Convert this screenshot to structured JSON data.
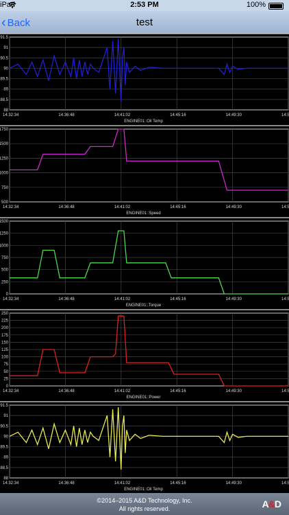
{
  "status_bar": {
    "device": "iPad",
    "time": "2:53 PM",
    "battery": "100%",
    "icons": [
      "wifi-icon",
      "bluetooth-icon",
      "battery-icon"
    ]
  },
  "nav": {
    "back_label": "Back",
    "title": "test",
    "back_icon": "chevron-left-icon"
  },
  "chart_data": [
    {
      "type": "line",
      "title": "ENGINE01::Oil Temp",
      "color": "#1f1fd6",
      "ylim": [
        88,
        91.5
      ],
      "yticks": [
        "91.5",
        "91",
        "90.5",
        "90",
        "89.5",
        "89",
        "88.5",
        "88"
      ],
      "xticks": [
        "14:32:34",
        "14:36:48",
        "14:41:02",
        "14:45:16",
        "14:49:30",
        "14:5"
      ],
      "x": [
        0,
        3,
        6,
        8,
        10,
        12,
        14,
        16,
        18,
        20,
        22,
        23,
        24,
        25,
        26,
        27,
        28,
        29,
        30,
        32,
        35,
        36,
        37,
        38,
        39,
        40,
        40.5,
        41,
        41.5,
        42,
        43,
        45,
        47,
        50,
        55,
        60,
        65,
        70,
        75,
        77,
        78,
        79,
        80,
        82,
        85,
        90,
        100
      ],
      "y": [
        90,
        90.2,
        89.7,
        90.3,
        89.6,
        90.4,
        89.4,
        90.6,
        89.7,
        90.3,
        89.6,
        90.5,
        89.5,
        90.4,
        89.6,
        90.3,
        89.7,
        90.2,
        90,
        89.8,
        91,
        89,
        91.3,
        88.8,
        91.4,
        88.4,
        90.5,
        91,
        89.2,
        90.3,
        89.8,
        90.1,
        89.9,
        90.05,
        90,
        90,
        90,
        90,
        90,
        89.7,
        90.2,
        89.8,
        90.1,
        89.95,
        90,
        90,
        90
      ]
    },
    {
      "type": "line",
      "title": "ENGINE01::Speed",
      "color": "#cc2ad0",
      "ylim": [
        500,
        1750
      ],
      "yticks": [
        "1750",
        "1500",
        "1250",
        "1000",
        "750",
        "500"
      ],
      "xticks": [
        "14:32:34",
        "14:36:48",
        "14:41:02",
        "14:45:16",
        "14:49:30",
        "14:5"
      ],
      "x": [
        0,
        10,
        12,
        27,
        29,
        37,
        39,
        40,
        41,
        42,
        75,
        78,
        100
      ],
      "y": [
        1050,
        1050,
        1320,
        1320,
        1450,
        1450,
        1750,
        1750,
        1750,
        1200,
        1200,
        700,
        700
      ]
    },
    {
      "type": "line",
      "title": "ENGINE01::Torque",
      "color": "#4fd84f",
      "ylim": [
        0,
        1500
      ],
      "yticks": [
        "1500",
        "1250",
        "1000",
        "750",
        "500",
        "250",
        "0"
      ],
      "xticks": [
        "14:32:34",
        "14:36:48",
        "14:41:02",
        "14:45:16",
        "14:49:30",
        "14:5"
      ],
      "x": [
        0,
        10,
        12,
        16,
        18,
        27,
        29,
        37,
        39,
        41,
        42,
        56,
        58,
        75,
        77,
        100
      ],
      "y": [
        330,
        330,
        900,
        900,
        330,
        330,
        640,
        640,
        1300,
        1300,
        640,
        640,
        330,
        330,
        0,
        0
      ]
    },
    {
      "type": "line",
      "title": "ENGINE01::Power",
      "color": "#e02020",
      "ylim": [
        0,
        250
      ],
      "yticks": [
        "250",
        "225",
        "200",
        "175",
        "150",
        "125",
        "100",
        "75",
        "50",
        "25",
        "0"
      ],
      "xticks": [
        "14:32:34",
        "14:36:48",
        "14:41:02",
        "14:45:16",
        "14:49:30",
        "14:5"
      ],
      "x": [
        0,
        10,
        12,
        16,
        18,
        27,
        29,
        37,
        38,
        39,
        41,
        42,
        57,
        59,
        75,
        77,
        100
      ],
      "y": [
        35,
        35,
        125,
        125,
        45,
        45,
        100,
        100,
        110,
        240,
        240,
        80,
        80,
        40,
        40,
        0,
        0
      ]
    },
    {
      "type": "line",
      "title": "ENGINE01::Oil Temp",
      "color": "#e8e858",
      "ylim": [
        88,
        91.5
      ],
      "yticks": [
        "91.5",
        "91",
        "90.5",
        "90",
        "89.5",
        "89",
        "88.5",
        "88"
      ],
      "xticks": [
        "14:32:34",
        "14:36:48",
        "14:41:02",
        "14:45:16",
        "14:49:30",
        "14:5"
      ],
      "x": [
        0,
        3,
        6,
        8,
        10,
        12,
        14,
        16,
        18,
        20,
        22,
        23,
        24,
        25,
        26,
        27,
        28,
        29,
        30,
        32,
        35,
        36,
        37,
        38,
        39,
        40,
        40.5,
        41,
        41.5,
        42,
        43,
        45,
        47,
        50,
        55,
        60,
        65,
        70,
        75,
        77,
        78,
        79,
        80,
        82,
        85,
        90,
        100
      ],
      "y": [
        90,
        90.2,
        89.7,
        90.3,
        89.6,
        90.4,
        89.4,
        90.6,
        89.7,
        90.3,
        89.6,
        90.5,
        89.5,
        90.4,
        89.6,
        90.3,
        89.7,
        90.2,
        90,
        89.8,
        91,
        89,
        91.3,
        88.8,
        91.4,
        88.4,
        90.5,
        91,
        89.2,
        90.3,
        89.8,
        90.1,
        89.9,
        90.05,
        90,
        90,
        90,
        90,
        90,
        89.7,
        90.2,
        89.8,
        90.1,
        89.95,
        90,
        90,
        90
      ]
    }
  ],
  "footer": {
    "copyright": "©2014–2015 A&D Technology, Inc.",
    "rights": "All rights reserved.",
    "logo_text": "A&D"
  }
}
